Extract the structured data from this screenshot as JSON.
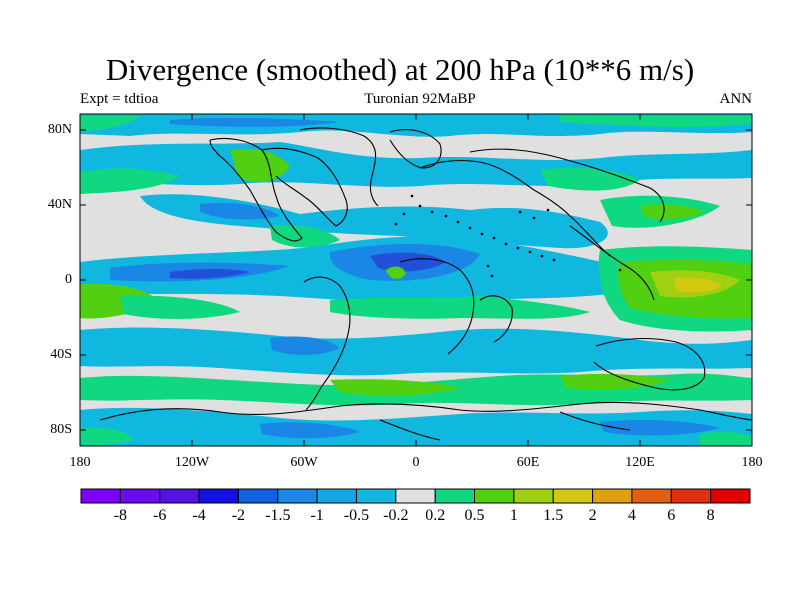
{
  "title": "Divergence (smoothed) at 200 hPa (10**6 m/s)",
  "subtitle_left": "Expt = tdtioa",
  "subtitle_center": "Turonian  92MaBP",
  "subtitle_right": "ANN",
  "lat_ticks": [
    "80N",
    "40N",
    "0",
    "40S",
    "80S"
  ],
  "lon_ticks": [
    "180",
    "120W",
    "60W",
    "0",
    "60E",
    "120E",
    "180"
  ],
  "colorbar": {
    "labels": [
      "-8",
      "-6",
      "-4",
      "-2",
      "-1.5",
      "-1",
      "-0.5",
      "-0.2",
      "0.2",
      "0.5",
      "1",
      "1.5",
      "2",
      "4",
      "6",
      "8"
    ],
    "colors": [
      "#7f00ff",
      "#6a0cef",
      "#5212e0",
      "#1010e0",
      "#1060e0",
      "#1a86e6",
      "#14a6e6",
      "#10b8e0",
      "#e0e0e0",
      "#10d880",
      "#50d010",
      "#a0d010",
      "#d4c810",
      "#e0a010",
      "#e06010",
      "#e03010",
      "#e00000"
    ]
  },
  "field_colors": {
    "background": "#e0e0e0",
    "neg_strong": "#2050d8",
    "neg_mid": "#1a86e6",
    "neg_weak": "#10b8e0",
    "pos_weak": "#10d880",
    "pos_mid": "#50d010",
    "pos_strong": "#a0d010",
    "pos_peak": "#d4c810"
  }
}
